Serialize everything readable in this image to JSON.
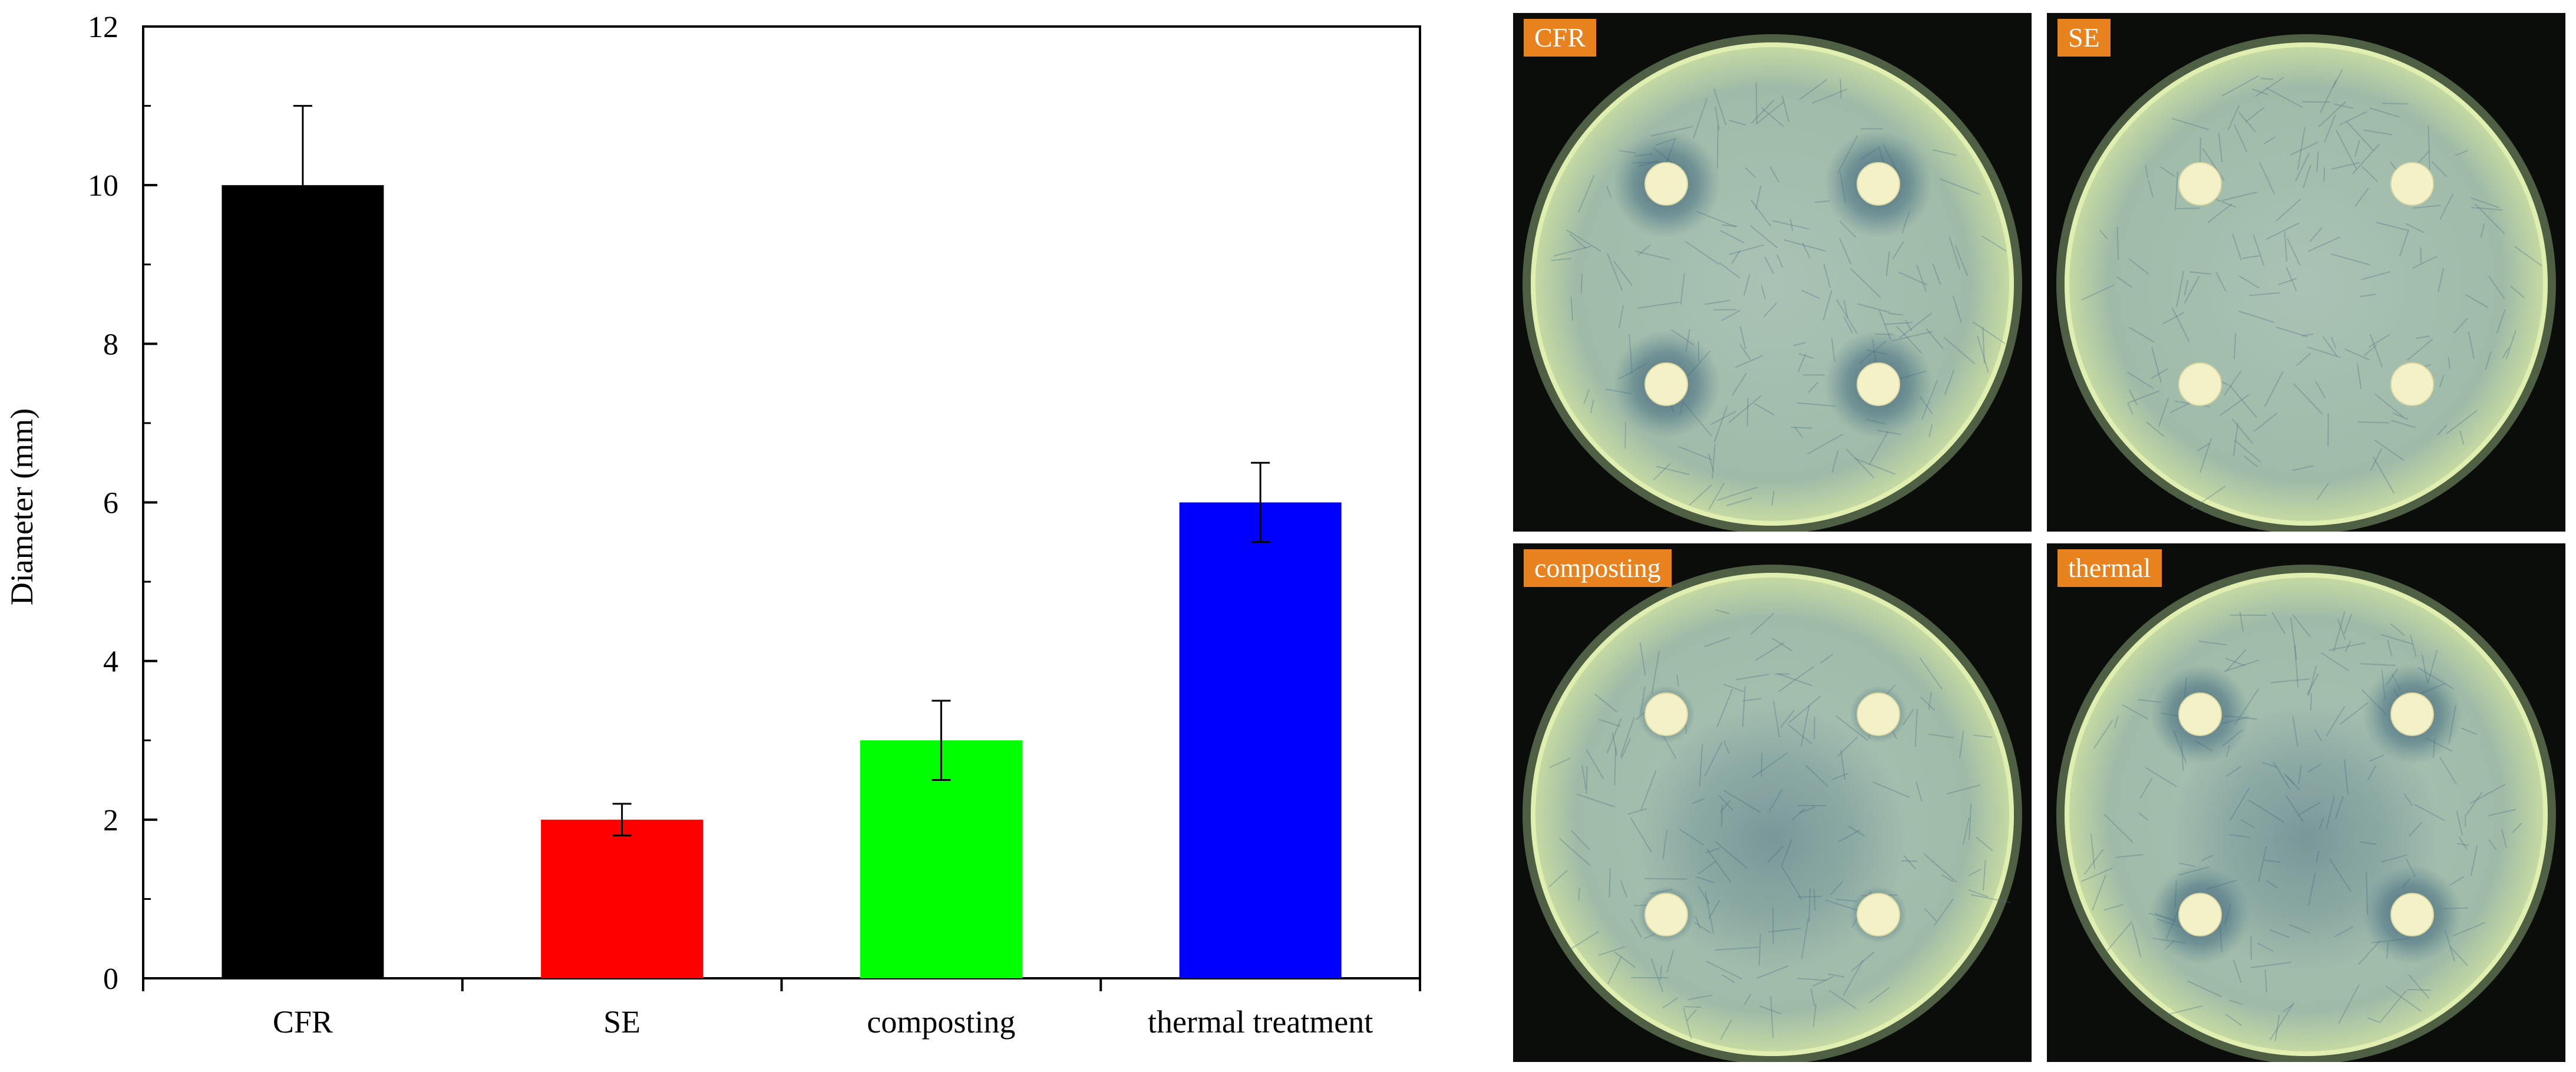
{
  "chart_data": {
    "type": "bar",
    "categories": [
      "CFR",
      "SE",
      "composting",
      "thermal treatment"
    ],
    "series": [
      {
        "values": [
          10,
          2,
          3,
          6
        ],
        "errors": [
          1,
          0.2,
          0.5,
          0.5
        ]
      }
    ],
    "bar_colors": [
      "#000000",
      "#ff0000",
      "#00ff00",
      "#0000ff"
    ],
    "title": "",
    "xlabel": "",
    "ylabel": "Diameter (mm)",
    "ylim": [
      0,
      12
    ],
    "yticks": [
      "0",
      "2",
      "4",
      "6",
      "8",
      "10",
      "12"
    ],
    "grid": false,
    "legend": "none"
  },
  "plates": {
    "label_color": "#e8821e",
    "items": [
      {
        "label": "CFR",
        "zone": "large"
      },
      {
        "label": "SE",
        "zone": "none"
      },
      {
        "label": "composting",
        "zone": "faint"
      },
      {
        "label": "thermal",
        "zone": "medium"
      }
    ]
  }
}
